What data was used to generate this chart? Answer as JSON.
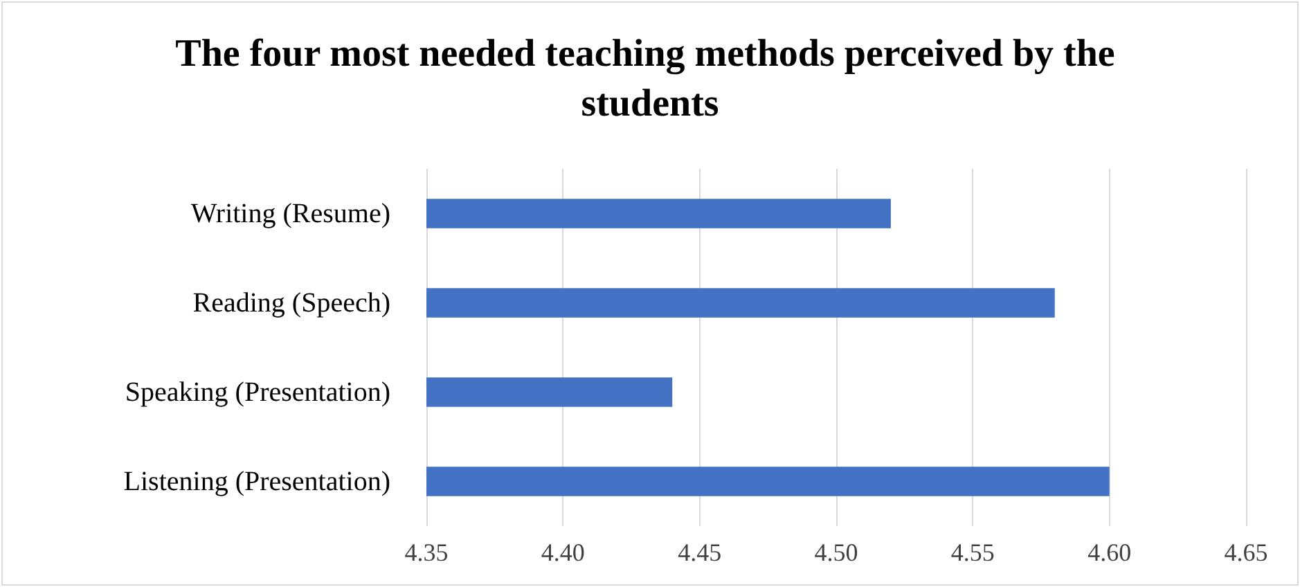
{
  "chart_data": {
    "type": "bar",
    "orientation": "horizontal",
    "title": "The four most needed teaching methods perceived by the students",
    "categories": [
      "Writing (Resume)",
      "Reading (Speech)",
      "Speaking (Presentation)",
      "Listening (Presentation)"
    ],
    "values": [
      4.52,
      4.58,
      4.44,
      4.6
    ],
    "color": "#4472c4",
    "xlim": [
      4.35,
      4.65
    ],
    "xticks": [
      4.35,
      {
        "value": 4.4,
        "label": "4.40"
      },
      4.45,
      {
        "value": 4.5,
        "label": "4.50"
      },
      4.55,
      {
        "value": 4.6,
        "label": "4.60"
      },
      4.65
    ],
    "grid": "x"
  }
}
